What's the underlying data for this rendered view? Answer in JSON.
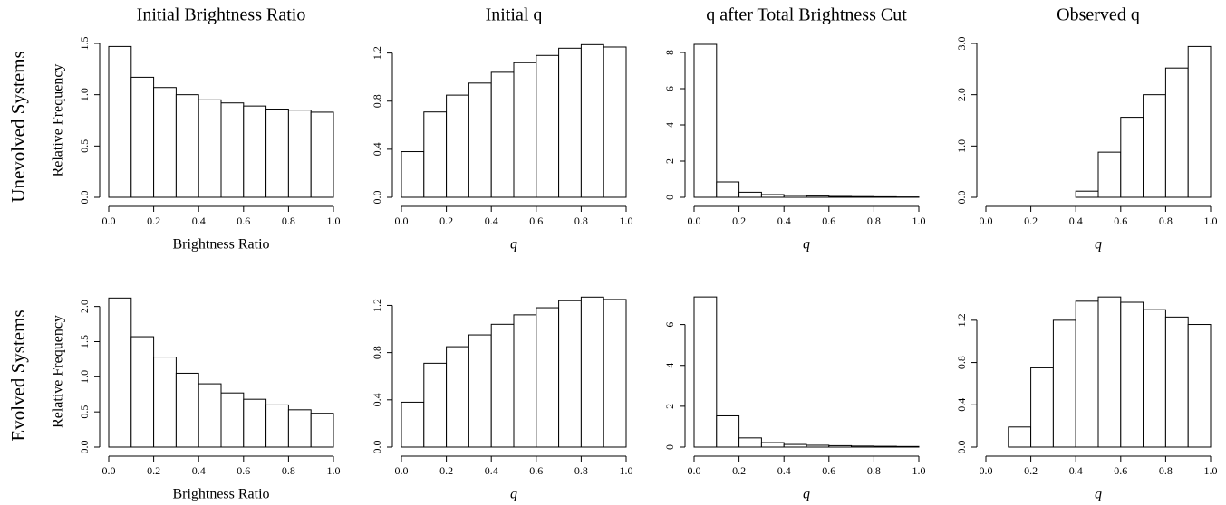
{
  "row_labels": [
    "Unevolved Systems",
    "Evolved Systems"
  ],
  "chart_data": [
    {
      "type": "histogram",
      "title": "Initial Brightness Ratio",
      "x_label": "Brightness Ratio",
      "y_label": "Relative Frequency",
      "bins": [
        0,
        0.1,
        0.2,
        0.3,
        0.4,
        0.5,
        0.6,
        0.7,
        0.8,
        0.9,
        1
      ],
      "values": [
        1.47,
        1.17,
        1.07,
        1.0,
        0.95,
        0.92,
        0.89,
        0.86,
        0.85,
        0.83
      ],
      "color": "#ffffff",
      "edgecolor": "#000000",
      "xlim": [
        0,
        1
      ],
      "ylim": [
        0,
        1.5
      ],
      "xticks": [
        {
          "value": 0,
          "label": "0.0"
        },
        0.2,
        0.4,
        0.6,
        0.8,
        {
          "value": 1,
          "label": "1.0"
        }
      ],
      "yticks": [
        {
          "value": 0,
          "label": "0.0"
        },
        0.5,
        {
          "value": 1,
          "label": "1.0"
        },
        1.5
      ]
    },
    {
      "type": "histogram",
      "title": "Initial q",
      "x_label": "q",
      "bins": [
        0,
        0.1,
        0.2,
        0.3,
        0.4,
        0.5,
        0.6,
        0.7,
        0.8,
        0.9,
        1
      ],
      "values": [
        0.38,
        0.71,
        0.85,
        0.95,
        1.04,
        1.12,
        1.18,
        1.24,
        1.27,
        1.25
      ],
      "color": "#ffffff",
      "edgecolor": "#000000",
      "xlim": [
        0,
        1
      ],
      "ylim": [
        0,
        1.28
      ],
      "xticks": [
        {
          "value": 0,
          "label": "0.0"
        },
        0.2,
        0.4,
        0.6,
        0.8,
        {
          "value": 1,
          "label": "1.0"
        }
      ],
      "yticks": [
        {
          "value": 0,
          "label": "0.0"
        },
        0.4,
        0.8,
        1.2
      ]
    },
    {
      "type": "histogram",
      "title": "q after Total Brightness Cut",
      "x_label": "q",
      "bins": [
        0,
        0.1,
        0.2,
        0.3,
        0.4,
        0.5,
        0.6,
        0.7,
        0.8,
        0.9,
        1
      ],
      "values": [
        8.45,
        0.85,
        0.28,
        0.15,
        0.1,
        0.07,
        0.05,
        0.04,
        0.03,
        0.02
      ],
      "color": "#ffffff",
      "edgecolor": "#000000",
      "xlim": [
        0,
        1
      ],
      "ylim": [
        0,
        8.5
      ],
      "xticks": [
        {
          "value": 0,
          "label": "0.0"
        },
        0.2,
        0.4,
        0.6,
        0.8,
        {
          "value": 1,
          "label": "1.0"
        }
      ],
      "yticks": [
        0,
        2,
        4,
        6,
        8
      ]
    },
    {
      "type": "histogram",
      "title": "Observed q",
      "x_label": "q",
      "bins": [
        0,
        0.1,
        0.2,
        0.3,
        0.4,
        0.5,
        0.6,
        0.7,
        0.8,
        0.9,
        1
      ],
      "values": [
        0,
        0,
        0,
        0,
        0.12,
        0.88,
        1.56,
        2.0,
        2.52,
        2.94
      ],
      "color": "#ffffff",
      "edgecolor": "#000000",
      "xlim": [
        0,
        1
      ],
      "ylim": [
        0,
        3.0
      ],
      "xticks": [
        {
          "value": 0,
          "label": "0.0"
        },
        0.2,
        0.4,
        0.6,
        0.8,
        {
          "value": 1,
          "label": "1.0"
        }
      ],
      "yticks": [
        {
          "value": 0,
          "label": "0.0"
        },
        {
          "value": 1,
          "label": "1.0"
        },
        {
          "value": 2,
          "label": "2.0"
        },
        {
          "value": 3,
          "label": "3.0"
        }
      ]
    },
    {
      "type": "histogram",
      "x_label": "Brightness Ratio",
      "y_label": "Relative Frequency",
      "bins": [
        0,
        0.1,
        0.2,
        0.3,
        0.4,
        0.5,
        0.6,
        0.7,
        0.8,
        0.9,
        1
      ],
      "values": [
        2.12,
        1.57,
        1.28,
        1.05,
        0.9,
        0.77,
        0.68,
        0.6,
        0.53,
        0.48
      ],
      "color": "#ffffff",
      "edgecolor": "#000000",
      "xlim": [
        0,
        1
      ],
      "ylim": [
        0,
        2.15
      ],
      "xticks": [
        {
          "value": 0,
          "label": "0.0"
        },
        0.2,
        0.4,
        0.6,
        0.8,
        {
          "value": 1,
          "label": "1.0"
        }
      ],
      "yticks": [
        {
          "value": 0,
          "label": "0.0"
        },
        0.5,
        {
          "value": 1,
          "label": "1.0"
        },
        1.5,
        {
          "value": 2,
          "label": "2.0"
        }
      ]
    },
    {
      "type": "histogram",
      "x_label": "q",
      "bins": [
        0,
        0.1,
        0.2,
        0.3,
        0.4,
        0.5,
        0.6,
        0.7,
        0.8,
        0.9,
        1
      ],
      "values": [
        0.38,
        0.71,
        0.85,
        0.95,
        1.04,
        1.12,
        1.18,
        1.24,
        1.27,
        1.25
      ],
      "color": "#ffffff",
      "edgecolor": "#000000",
      "xlim": [
        0,
        1
      ],
      "ylim": [
        0,
        1.28
      ],
      "xticks": [
        {
          "value": 0,
          "label": "0.0"
        },
        0.2,
        0.4,
        0.6,
        0.8,
        {
          "value": 1,
          "label": "1.0"
        }
      ],
      "yticks": [
        {
          "value": 0,
          "label": "0.0"
        },
        0.4,
        0.8,
        1.2
      ]
    },
    {
      "type": "histogram",
      "x_label": "q",
      "bins": [
        0,
        0.1,
        0.2,
        0.3,
        0.4,
        0.5,
        0.6,
        0.7,
        0.8,
        0.9,
        1
      ],
      "values": [
        7.35,
        1.53,
        0.45,
        0.22,
        0.13,
        0.09,
        0.07,
        0.05,
        0.04,
        0.03
      ],
      "color": "#ffffff",
      "edgecolor": "#000000",
      "xlim": [
        0,
        1
      ],
      "ylim": [
        0,
        7.4
      ],
      "xticks": [
        {
          "value": 0,
          "label": "0.0"
        },
        0.2,
        0.4,
        0.6,
        0.8,
        {
          "value": 1,
          "label": "1.0"
        }
      ],
      "yticks": [
        0,
        2,
        4,
        6
      ]
    },
    {
      "type": "histogram",
      "x_label": "q",
      "bins": [
        0,
        0.1,
        0.2,
        0.3,
        0.4,
        0.5,
        0.6,
        0.7,
        0.8,
        0.9,
        1
      ],
      "values": [
        0,
        0.19,
        0.75,
        1.2,
        1.38,
        1.42,
        1.37,
        1.3,
        1.23,
        1.16
      ],
      "color": "#ffffff",
      "edgecolor": "#000000",
      "xlim": [
        0,
        1
      ],
      "ylim": [
        0,
        1.43
      ],
      "xticks": [
        {
          "value": 0,
          "label": "0.0"
        },
        0.2,
        0.4,
        0.6,
        0.8,
        {
          "value": 1,
          "label": "1.0"
        }
      ],
      "yticks": [
        {
          "value": 0,
          "label": "0.0"
        },
        0.4,
        0.8,
        1.2
      ]
    }
  ]
}
